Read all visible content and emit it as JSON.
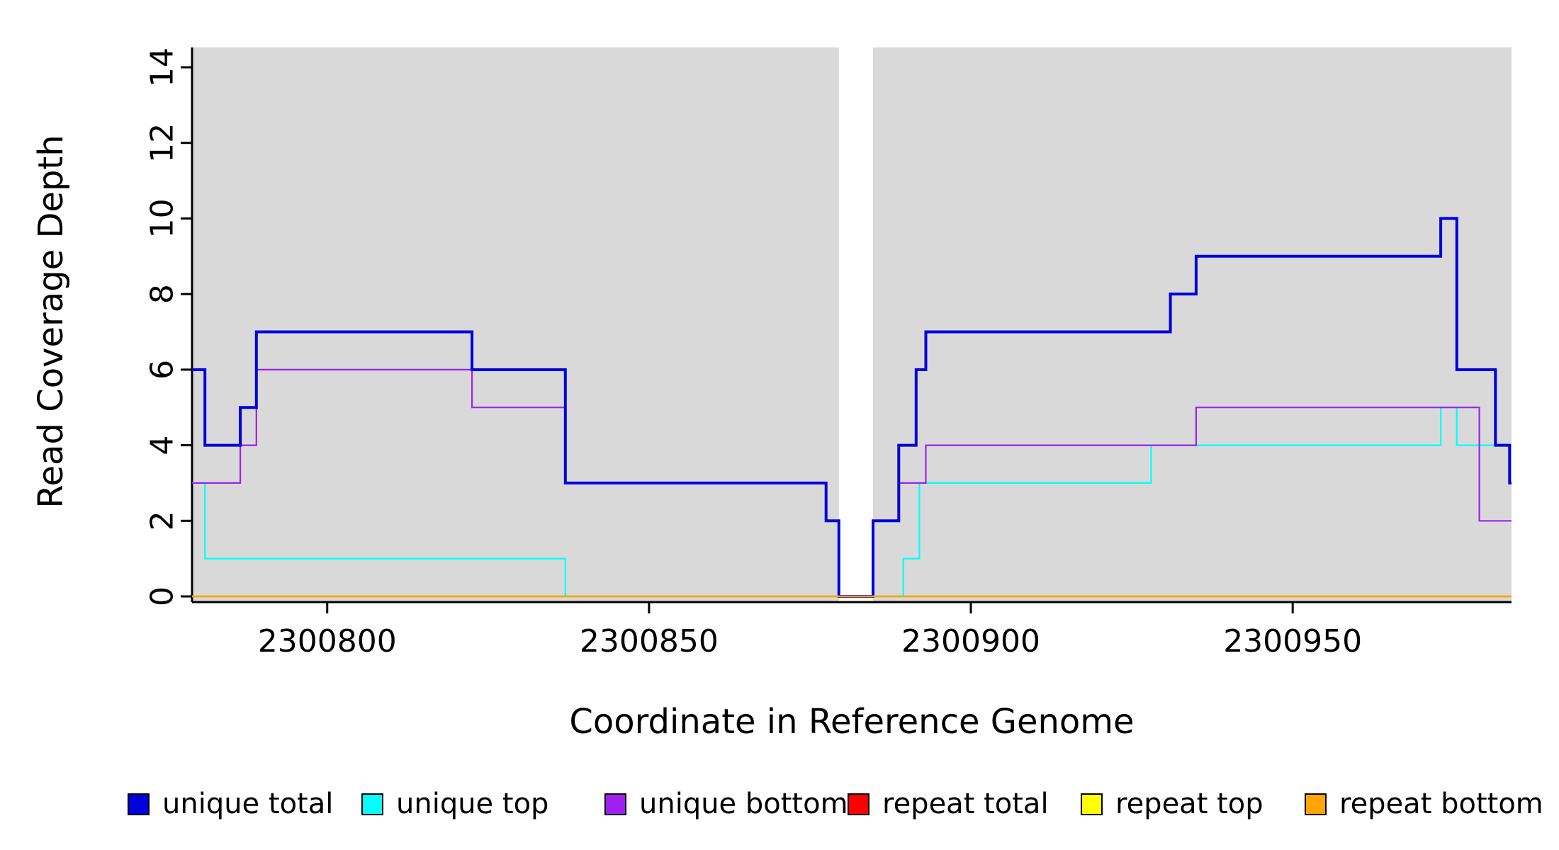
{
  "chart_data": {
    "type": "line",
    "line_style": "step",
    "title": "",
    "xlabel": "Coordinate in Reference Genome",
    "ylabel": "Read Coverage Depth",
    "xlim": [
      2300779,
      2300984
    ],
    "ylim": [
      0,
      14.5
    ],
    "xticks": [
      2300800,
      2300850,
      2300900,
      2300950
    ],
    "yticks": [
      0,
      2,
      4,
      6,
      8,
      10,
      12,
      14
    ],
    "grid": false,
    "plot_background": "#d9d9d9",
    "page_background": "#ffffff",
    "axis_color": "#000000",
    "gap_band": {
      "from": 2300879.5,
      "to": 2300884.8,
      "color": "#ffffff"
    },
    "legend_position": "bottom",
    "series": [
      {
        "name": "unique total",
        "color": "#0000dd",
        "line_width": 4,
        "steps": [
          [
            2300779,
            6
          ],
          [
            2300781,
            4
          ],
          [
            2300786.5,
            5
          ],
          [
            2300789,
            7
          ],
          [
            2300822.5,
            6
          ],
          [
            2300837,
            3
          ],
          [
            2300877.5,
            2
          ],
          [
            2300879.5,
            0
          ],
          [
            2300884.8,
            2
          ],
          [
            2300888.8,
            4
          ],
          [
            2300891.5,
            6
          ],
          [
            2300893,
            7
          ],
          [
            2300931,
            8
          ],
          [
            2300935,
            9
          ],
          [
            2300973,
            10
          ],
          [
            2300975.5,
            6
          ],
          [
            2300981.5,
            4
          ],
          [
            2300983.7,
            3
          ],
          [
            2300984,
            3
          ]
        ]
      },
      {
        "name": "unique top",
        "color": "#00ffff",
        "line_width": 2.2,
        "steps": [
          [
            2300779,
            3
          ],
          [
            2300781,
            1
          ],
          [
            2300837,
            0
          ],
          [
            2300884.8,
            0
          ],
          [
            2300889.5,
            1
          ],
          [
            2300892,
            3
          ],
          [
            2300928,
            4
          ],
          [
            2300973,
            5
          ],
          [
            2300975.5,
            4
          ],
          [
            2300984,
            4
          ]
        ]
      },
      {
        "name": "unique bottom",
        "color": "#a020f0",
        "line_width": 2.2,
        "steps": [
          [
            2300779,
            3
          ],
          [
            2300786.5,
            4
          ],
          [
            2300789,
            6
          ],
          [
            2300822.5,
            5
          ],
          [
            2300837,
            3
          ],
          [
            2300877.5,
            2
          ],
          [
            2300879.5,
            0
          ],
          [
            2300884.8,
            2
          ],
          [
            2300888.8,
            3
          ],
          [
            2300893,
            4
          ],
          [
            2300935,
            5
          ],
          [
            2300979,
            2
          ],
          [
            2300984,
            2
          ]
        ]
      },
      {
        "name": "repeat total",
        "color": "#ff0000",
        "line_width": 2.2,
        "steps": [
          [
            2300779,
            0
          ],
          [
            2300984,
            0
          ]
        ]
      },
      {
        "name": "repeat top",
        "color": "#ffff00",
        "line_width": 2.2,
        "steps": [
          [
            2300779,
            0
          ],
          [
            2300984,
            0
          ]
        ]
      },
      {
        "name": "repeat bottom",
        "color": "#ffa500",
        "line_width": 2.5,
        "steps": [
          [
            2300779,
            0
          ],
          [
            2300984,
            0
          ]
        ]
      }
    ]
  }
}
